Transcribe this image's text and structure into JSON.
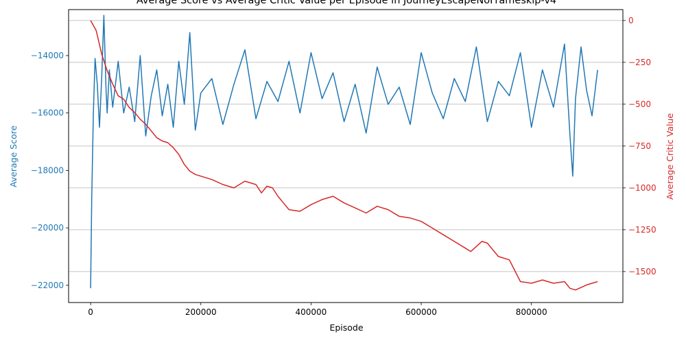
{
  "chart_data": {
    "type": "line",
    "title": "Average Score vs Average Critic Value per Episode in JourneyEscapeNoFrameskip-v4",
    "xlabel": "Episode",
    "xlim": [
      -40000,
      966000
    ],
    "xticks": [
      0,
      200000,
      400000,
      600000,
      800000
    ],
    "grid": "horizontal, right axis",
    "left_axis": {
      "label": "Average Score",
      "color": "#1f77b4",
      "ylim": [
        -22600,
        -12400
      ],
      "ticks": [
        -22000,
        -20000,
        -18000,
        -16000,
        -14000
      ]
    },
    "right_axis": {
      "label": "Average Critic Value",
      "color": "#d62728",
      "ylim": [
        -1685,
        65
      ],
      "ticks": [
        -1500,
        -1250,
        -1000,
        -750,
        -500,
        -250,
        0
      ]
    },
    "series": [
      {
        "name": "Average Score",
        "axis": "left",
        "color": "#1f77b4",
        "x": [
          0,
          2000,
          5000,
          8000,
          12000,
          16000,
          20000,
          24000,
          28000,
          30000,
          34000,
          40000,
          50000,
          60000,
          70000,
          80000,
          90000,
          100000,
          110000,
          120000,
          130000,
          140000,
          150000,
          160000,
          170000,
          180000,
          190000,
          200000,
          220000,
          240000,
          260000,
          280000,
          300000,
          320000,
          340000,
          360000,
          380000,
          400000,
          420000,
          440000,
          460000,
          480000,
          500000,
          520000,
          540000,
          560000,
          580000,
          600000,
          620000,
          640000,
          660000,
          680000,
          700000,
          720000,
          740000,
          760000,
          780000,
          800000,
          820000,
          840000,
          860000,
          870000,
          875000,
          880000,
          890000,
          900000,
          910000,
          920000
        ],
        "values": [
          -22100,
          -19000,
          -16000,
          -14100,
          -15000,
          -16500,
          -14800,
          -12600,
          -15200,
          -16000,
          -14500,
          -15800,
          -14200,
          -16000,
          -15100,
          -16300,
          -14000,
          -16800,
          -15400,
          -14500,
          -16100,
          -15000,
          -16500,
          -14200,
          -15700,
          -13200,
          -16600,
          -15300,
          -14800,
          -16400,
          -15000,
          -13800,
          -16200,
          -14900,
          -15600,
          -14200,
          -16000,
          -13900,
          -15500,
          -14600,
          -16300,
          -15000,
          -16700,
          -14400,
          -15700,
          -15100,
          -16400,
          -13900,
          -15300,
          -16200,
          -14800,
          -15600,
          -13700,
          -16300,
          -14900,
          -15400,
          -13900,
          -16500,
          -14500,
          -15800,
          -13600,
          -16800,
          -18200,
          -15500,
          -13700,
          -15200,
          -16100,
          -14500
        ]
      },
      {
        "name": "Average Critic Value",
        "axis": "right",
        "color": "#d62728",
        "x": [
          0,
          10000,
          20000,
          30000,
          40000,
          50000,
          60000,
          70000,
          80000,
          90000,
          100000,
          110000,
          120000,
          130000,
          140000,
          150000,
          160000,
          170000,
          180000,
          190000,
          200000,
          220000,
          240000,
          260000,
          280000,
          300000,
          310000,
          320000,
          330000,
          340000,
          350000,
          360000,
          380000,
          400000,
          420000,
          440000,
          460000,
          480000,
          500000,
          520000,
          540000,
          560000,
          580000,
          600000,
          620000,
          640000,
          660000,
          680000,
          690000,
          700000,
          710000,
          720000,
          730000,
          740000,
          760000,
          780000,
          800000,
          820000,
          840000,
          860000,
          870000,
          880000,
          900000,
          920000
        ],
        "values": [
          0,
          -60,
          -200,
          -300,
          -380,
          -450,
          -470,
          -520,
          -550,
          -590,
          -620,
          -660,
          -700,
          -720,
          -730,
          -760,
          -800,
          -860,
          -900,
          -920,
          -930,
          -950,
          -980,
          -1000,
          -960,
          -980,
          -1030,
          -990,
          -1000,
          -1050,
          -1090,
          -1130,
          -1140,
          -1100,
          -1070,
          -1050,
          -1090,
          -1120,
          -1150,
          -1110,
          -1130,
          -1170,
          -1180,
          -1200,
          -1240,
          -1280,
          -1320,
          -1360,
          -1380,
          -1350,
          -1320,
          -1330,
          -1370,
          -1410,
          -1430,
          -1560,
          -1570,
          -1550,
          -1570,
          -1560,
          -1600,
          -1610,
          -1580,
          -1560
        ]
      }
    ]
  }
}
